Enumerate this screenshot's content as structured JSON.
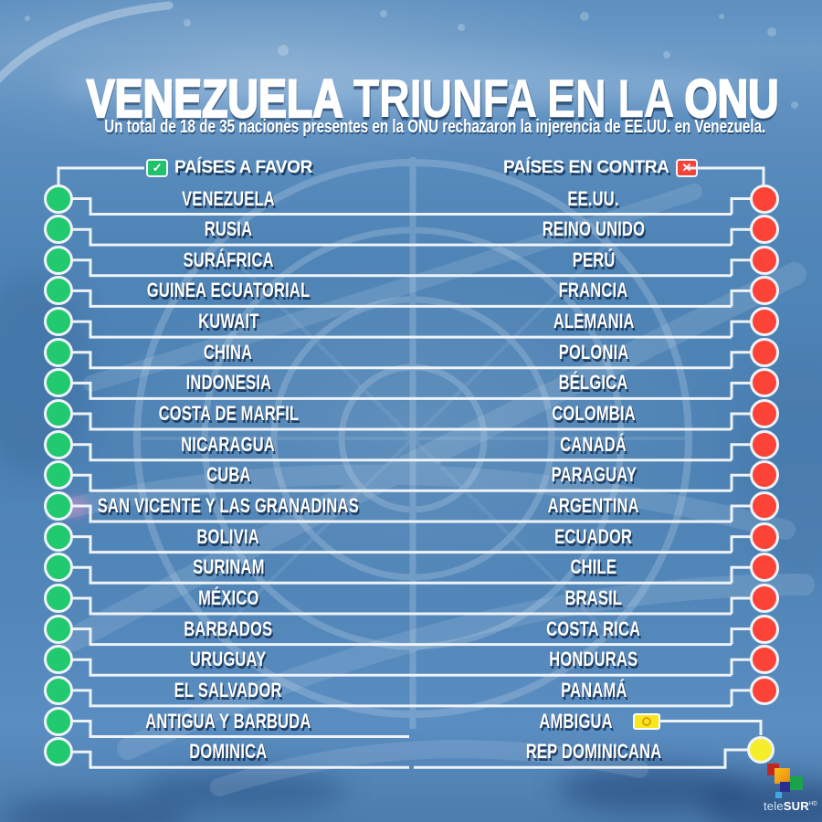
{
  "title": {
    "word1": "VENEZUELA",
    "word2": "TRIUNFA EN LA",
    "word3": "ONU"
  },
  "subtitle": "Un total de 18 de 35 naciones presentes en la ONU rechazaron la injerencia de EE.UU. en Venezuela.",
  "columns": {
    "favor": {
      "label": "PAÍSES A FAVOR",
      "icon": "check-icon",
      "check_glyph": "✓"
    },
    "contra": {
      "label": "PAÍSES EN CONTRA",
      "icon": "cross-icon",
      "cross_glyph": "✕"
    }
  },
  "rows": [
    {
      "favor": "VENEZUELA",
      "contra": "EE.UU.",
      "contra_marker": "red-dot"
    },
    {
      "favor": "RUSIA",
      "contra": "REINO UNIDO",
      "contra_marker": "red-dot"
    },
    {
      "favor": "SURÁFRICA",
      "contra": "PERÚ",
      "contra_marker": "red-dot"
    },
    {
      "favor": "GUINEA ECUATORIAL",
      "contra": "FRANCIA",
      "contra_marker": "red-dot"
    },
    {
      "favor": "KUWAIT",
      "contra": "ALEMANIA",
      "contra_marker": "red-dot"
    },
    {
      "favor": "CHINA",
      "contra": "POLONIA",
      "contra_marker": "red-dot"
    },
    {
      "favor": "INDONESIA",
      "contra": "BÉLGICA",
      "contra_marker": "red-dot"
    },
    {
      "favor": "COSTA DE MARFIL",
      "contra": "COLOMBIA",
      "contra_marker": "red-dot"
    },
    {
      "favor": "NICARAGUA",
      "contra": "CANADÁ",
      "contra_marker": "red-dot"
    },
    {
      "favor": "CUBA",
      "contra": "PARAGUAY",
      "contra_marker": "red-dot"
    },
    {
      "favor": "SAN VICENTE Y LAS GRANADINAS",
      "contra": "ARGENTINA",
      "contra_marker": "red-dot"
    },
    {
      "favor": "BOLIVIA",
      "contra": "ECUADOR",
      "contra_marker": "red-dot"
    },
    {
      "favor": "SURINAM",
      "contra": "CHILE",
      "contra_marker": "red-dot"
    },
    {
      "favor": "MÉXICO",
      "contra": "BRASIL",
      "contra_marker": "red-dot"
    },
    {
      "favor": "BARBADOS",
      "contra": "COSTA RICA",
      "contra_marker": "red-dot"
    },
    {
      "favor": "URUGUAY",
      "contra": "HONDURAS",
      "contra_marker": "red-dot"
    },
    {
      "favor": "EL SALVADOR",
      "contra": "PANAMÁ",
      "contra_marker": "red-dot"
    },
    {
      "favor": "ANTIGUA Y BARBUDA",
      "contra": "AMBIGUA",
      "contra_marker": "yellow-badge"
    },
    {
      "favor": "DOMINICA",
      "contra": "REP DOMINICANA",
      "contra_marker": "yellow-dot"
    }
  ],
  "colors": {
    "favor_dot": "#21c96f",
    "contra_dot": "#fb4338",
    "ambiguous_dot": "#f6ee2b",
    "line": "#eef3f8",
    "background_blue": "#4d82b4"
  },
  "logo": {
    "prefix": "tele",
    "suffix": "SUR",
    "hd": "HD"
  },
  "chart_data": {
    "type": "table",
    "title": "VENEZUELA TRIUNFA EN LA ONU",
    "subtitle": "Un total de 18 de 35 naciones presentes en la ONU rechazaron la injerencia de EE.UU. en Venezuela.",
    "columns": [
      "PAÍSES A FAVOR",
      "PAÍSES EN CONTRA"
    ],
    "paises_a_favor": [
      "VENEZUELA",
      "RUSIA",
      "SURÁFRICA",
      "GUINEA ECUATORIAL",
      "KUWAIT",
      "CHINA",
      "INDONESIA",
      "COSTA DE MARFIL",
      "NICARAGUA",
      "CUBA",
      "SAN VICENTE Y LAS GRANADINAS",
      "BOLIVIA",
      "SURINAM",
      "MÉXICO",
      "BARBADOS",
      "URUGUAY",
      "EL SALVADOR",
      "ANTIGUA Y BARBUDA",
      "DOMINICA"
    ],
    "paises_en_contra": [
      "EE.UU.",
      "REINO UNIDO",
      "PERÚ",
      "FRANCIA",
      "ALEMANIA",
      "POLONIA",
      "BÉLGICA",
      "COLOMBIA",
      "CANADÁ",
      "PARAGUAY",
      "ARGENTINA",
      "ECUADOR",
      "CHILE",
      "BRASIL",
      "COSTA RICA",
      "HONDURAS",
      "PANAMÁ"
    ],
    "ambigua": [
      "REP DOMINICANA"
    ],
    "totals": {
      "presentes": 35,
      "rechazaron": 18
    }
  }
}
